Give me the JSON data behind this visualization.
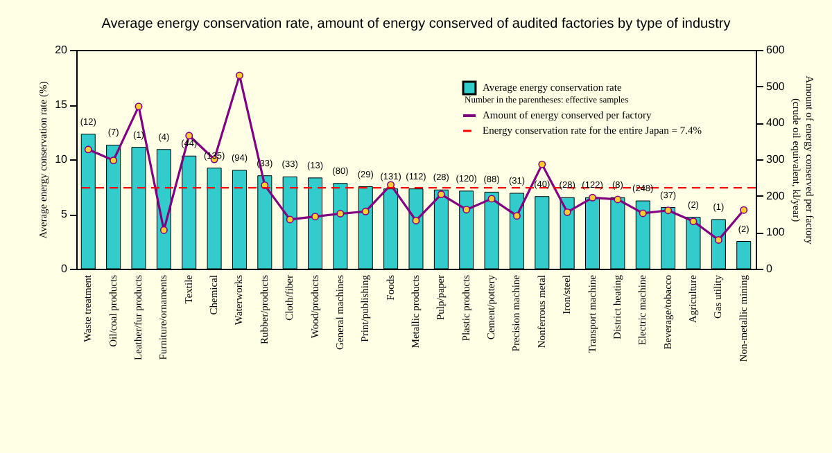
{
  "chart_data": {
    "type": "bar",
    "title": "Average energy conservation rate, amount of energy conserved of audited factories by type of industry",
    "ylabel": "Average energy conservation rate (%)",
    "y2label": "Amount of energy conserved per factory (crude oil equivalent, kl/year)",
    "categories": [
      "Waste treatment",
      "Oil/coal products",
      "Leather/fur products",
      "Furniture/ornaments",
      "Textile",
      "Chemical",
      "Waterworks",
      "Rubber/products",
      "Cloth/fiber",
      "Wood/products",
      "General machines",
      "Print/publishing",
      "Foods",
      "Metallic products",
      "Pulp/paper",
      "Plastic products",
      "Cement/pottery",
      "Precision machine",
      "Nonferrous metal",
      "Iron/steel",
      "Transport machine",
      "District heating",
      "Electric machine",
      "Beverage/tobacco",
      "Agriculture",
      "Gas utility",
      "Non-metallic mining"
    ],
    "series": [
      {
        "name": "Average energy conservation rate",
        "color": "#33cccc",
        "values": [
          12.3,
          11.3,
          11.1,
          10.9,
          10.3,
          9.2,
          9.0,
          8.5,
          8.4,
          8.3,
          7.8,
          7.5,
          7.3,
          7.3,
          7.2,
          7.1,
          7.0,
          6.9,
          6.6,
          6.5,
          6.5,
          6.5,
          6.2,
          5.6,
          4.7,
          4.5,
          2.5
        ]
      },
      {
        "name": "Amount of energy conserved per factory",
        "type": "line",
        "axis": "y2",
        "color": "#800080",
        "marker": "circle",
        "values": [
          327,
          297,
          445,
          106,
          365,
          300,
          530,
          229,
          135,
          143,
          151,
          157,
          230,
          132,
          204,
          162,
          192,
          145,
          286,
          155,
          195,
          190,
          152,
          160,
          130,
          79,
          161
        ]
      }
    ],
    "ylim": [
      0,
      20
    ],
    "yticks": [
      0,
      5,
      10,
      15,
      20
    ],
    "y2lim": [
      0,
      600
    ],
    "y2ticks": [
      0,
      100,
      200,
      300,
      400,
      500,
      600
    ],
    "ref_lines": [
      {
        "axis": "y",
        "value": 7.4,
        "label": "Energy conservation rate for the entire Japan = 7.4%",
        "color": "#ff0000",
        "line_style": "dashed"
      }
    ],
    "annotations": [
      "Number in the parentheses: effective samples",
      {
        "text": "(12)",
        "x": "Waste treatment",
        "y": 12.3
      },
      {
        "text": "(7)",
        "x": "Oil/coal products",
        "y": 11.3
      },
      {
        "text": "(1)",
        "x": "Leather/fur products",
        "y": 11.1
      },
      {
        "text": "(4)",
        "x": "Furniture/ornaments",
        "y": 10.9
      },
      {
        "text": "(44)",
        "x": "Textile",
        "y": 10.3
      },
      {
        "text": "(135)",
        "x": "Chemical",
        "y": 9.2
      },
      {
        "text": "(94)",
        "x": "Waterworks",
        "y": 9.0
      },
      {
        "text": "(33)",
        "x": "Rubber/products",
        "y": 8.5
      },
      {
        "text": "(33)",
        "x": "Cloth/fiber",
        "y": 8.4
      },
      {
        "text": "(13)",
        "x": "Wood/products",
        "y": 8.3
      },
      {
        "text": "(80)",
        "x": "General machines",
        "y": 7.8
      },
      {
        "text": "(29)",
        "x": "Print/publishing",
        "y": 7.5
      },
      {
        "text": "(131)",
        "x": "Foods",
        "y": 7.3
      },
      {
        "text": "(112)",
        "x": "Metallic products",
        "y": 7.3
      },
      {
        "text": "(28)",
        "x": "Pulp/paper",
        "y": 7.2
      },
      {
        "text": "(120)",
        "x": "Plastic products",
        "y": 7.1
      },
      {
        "text": "(88)",
        "x": "Cement/pottery",
        "y": 7.0
      },
      {
        "text": "(31)",
        "x": "Precision machine",
        "y": 6.9
      },
      {
        "text": "(40)",
        "x": "Nonferrous metal",
        "y": 6.6
      },
      {
        "text": "(28)",
        "x": "Iron/steel",
        "y": 6.5
      },
      {
        "text": "(122)",
        "x": "Transport machine",
        "y": 6.5
      },
      {
        "text": "(8)",
        "x": "District heating",
        "y": 6.5
      },
      {
        "text": "(248)",
        "x": "Electric machine",
        "y": 6.2
      },
      {
        "text": "(37)",
        "x": "Beverage/tobacco",
        "y": 5.6
      },
      {
        "text": "(2)",
        "x": "Agriculture",
        "y": 4.7
      },
      {
        "text": "(1)",
        "x": "Gas utility",
        "y": 4.5
      },
      {
        "text": "(2)",
        "x": "Non-metallic mining",
        "y": 2.5
      }
    ],
    "legend": "top right",
    "grid": false
  }
}
